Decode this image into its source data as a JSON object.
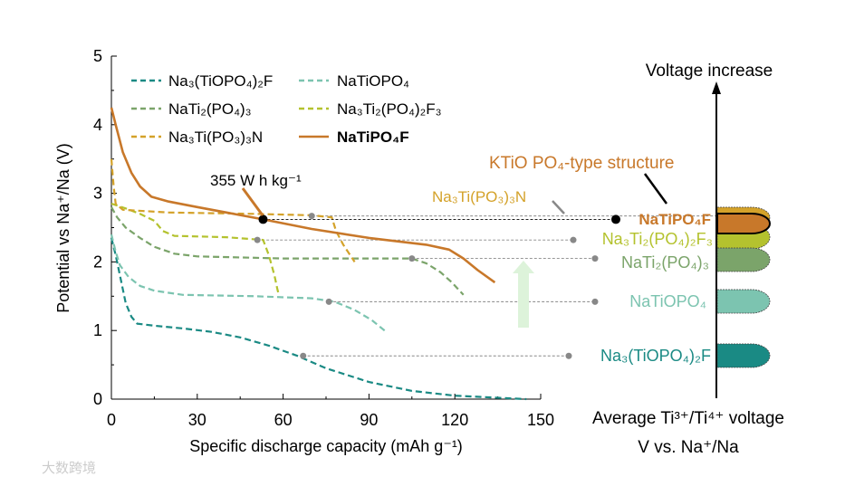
{
  "chart_data": {
    "type": "line",
    "xlabel": "Specific discharge capacity (mAh g⁻¹)",
    "ylabel": "Potential vs Na⁺/Na (V)",
    "xlim": [
      0,
      150
    ],
    "ylim": [
      0,
      5
    ],
    "xticks": [
      "0",
      "30",
      "60",
      "90",
      "120",
      "150"
    ],
    "xtick_values": [
      0,
      30,
      60,
      90,
      120,
      150
    ],
    "yticks": [
      "0",
      "1",
      "2",
      "3",
      "4",
      "5"
    ],
    "ytick_values": [
      0,
      1,
      2,
      3,
      4,
      5
    ],
    "grid": false,
    "legend_position": "top-left",
    "series": [
      {
        "name": "Na₃(TiOPO₄)₂F",
        "color": "#1A8A84",
        "dash": true,
        "points": [
          [
            0,
            2.35
          ],
          [
            1.5,
            2.1
          ],
          [
            3,
            1.8
          ],
          [
            5,
            1.4
          ],
          [
            7,
            1.2
          ],
          [
            9,
            1.1
          ],
          [
            15,
            1.07
          ],
          [
            25,
            1.03
          ],
          [
            35,
            0.98
          ],
          [
            45,
            0.9
          ],
          [
            55,
            0.78
          ],
          [
            65,
            0.63
          ],
          [
            75,
            0.45
          ],
          [
            90,
            0.25
          ],
          [
            105,
            0.12
          ],
          [
            120,
            0.05
          ],
          [
            135,
            0.02
          ],
          [
            145,
            0.0
          ]
        ]
      },
      {
        "name": "NaTiOPO₄",
        "color": "#7CC4B0",
        "dash": true,
        "points": [
          [
            0,
            2.4
          ],
          [
            1.5,
            2.15
          ],
          [
            3,
            1.95
          ],
          [
            6,
            1.78
          ],
          [
            10,
            1.65
          ],
          [
            15,
            1.58
          ],
          [
            25,
            1.52
          ],
          [
            50,
            1.5
          ],
          [
            70,
            1.47
          ],
          [
            78,
            1.42
          ],
          [
            85,
            1.3
          ],
          [
            91,
            1.15
          ],
          [
            96,
            0.98
          ]
        ]
      },
      {
        "name": "NaTi₂(PO₄)₃",
        "color": "#7BA46A",
        "dash": true,
        "points": [
          [
            0,
            2.8
          ],
          [
            2,
            2.65
          ],
          [
            5,
            2.5
          ],
          [
            10,
            2.35
          ],
          [
            15,
            2.22
          ],
          [
            22,
            2.12
          ],
          [
            30,
            2.08
          ],
          [
            60,
            2.05
          ],
          [
            90,
            2.05
          ],
          [
            105,
            2.05
          ],
          [
            110,
            1.98
          ],
          [
            115,
            1.85
          ],
          [
            119,
            1.7
          ],
          [
            123,
            1.52
          ]
        ]
      },
      {
        "name": "Na₃Ti₂(PO₄)₂F₃",
        "color": "#B4C22E",
        "dash": true,
        "points": [
          [
            0,
            2.85
          ],
          [
            5,
            2.78
          ],
          [
            10,
            2.7
          ],
          [
            15,
            2.6
          ],
          [
            18,
            2.45
          ],
          [
            22,
            2.38
          ],
          [
            40,
            2.36
          ],
          [
            53,
            2.32
          ],
          [
            55,
            2.1
          ],
          [
            57,
            1.8
          ],
          [
            58,
            1.6
          ],
          [
            58.5,
            1.52
          ]
        ]
      },
      {
        "name": "Na₃Ti(PO₃)₃N",
        "color": "#D4A22A",
        "dash": true,
        "points": [
          [
            0,
            3.5
          ],
          [
            0.8,
            3.1
          ],
          [
            1.5,
            2.85
          ],
          [
            4,
            2.76
          ],
          [
            20,
            2.72
          ],
          [
            50,
            2.7
          ],
          [
            70,
            2.68
          ],
          [
            77,
            2.65
          ],
          [
            78.5,
            2.45
          ],
          [
            81,
            2.25
          ],
          [
            85,
            2.0
          ]
        ]
      },
      {
        "name": "NaTiPO₄F",
        "color": "#C8782A",
        "dash": false,
        "bold": true,
        "points": [
          [
            0,
            4.25
          ],
          [
            1.5,
            4.0
          ],
          [
            4,
            3.6
          ],
          [
            7,
            3.3
          ],
          [
            10,
            3.1
          ],
          [
            14,
            2.95
          ],
          [
            20,
            2.88
          ],
          [
            30,
            2.8
          ],
          [
            53,
            2.62
          ],
          [
            70,
            2.48
          ],
          [
            90,
            2.35
          ],
          [
            110,
            2.25
          ],
          [
            118,
            2.18
          ],
          [
            123,
            2.05
          ],
          [
            128,
            1.88
          ],
          [
            134,
            1.7
          ]
        ]
      }
    ],
    "annotations": {
      "energy_label": "355 W h kg⁻¹",
      "energy_point": [
        53,
        2.62
      ],
      "structure_label": "KTiO PO₄-type structure"
    },
    "average_voltage_panel": {
      "title_top": "Voltage increase",
      "caption_line1": "Average Ti³⁺/Ti⁴⁺ voltage",
      "caption_line2": "V vs. Na⁺/Na",
      "items": [
        {
          "label": "NaTiPO₄F",
          "color": "#C8782A",
          "voltage": 2.62,
          "marker_capacity": 53,
          "bold": true
        },
        {
          "label": "Na₃Ti(PO₃)₃N",
          "color": "#D4A22A",
          "voltage": 2.67,
          "marker_capacity": 70
        },
        {
          "label": "Na₃Ti₂(PO₄)₂F₃",
          "color": "#B4C22E",
          "voltage": 2.32,
          "marker_capacity": 51
        },
        {
          "label": "NaTi₂(PO₄)₃",
          "color": "#7BA46A",
          "voltage": 2.05,
          "marker_capacity": 105
        },
        {
          "label": "NaTiOPO₄",
          "color": "#7CC4B0",
          "voltage": 1.42,
          "marker_capacity": 76
        },
        {
          "label": "Na₃(TiOPO₄)₂F",
          "color": "#1A8A84",
          "voltage": 0.63,
          "marker_capacity": 67
        }
      ]
    }
  },
  "watermark": "大数跨境"
}
